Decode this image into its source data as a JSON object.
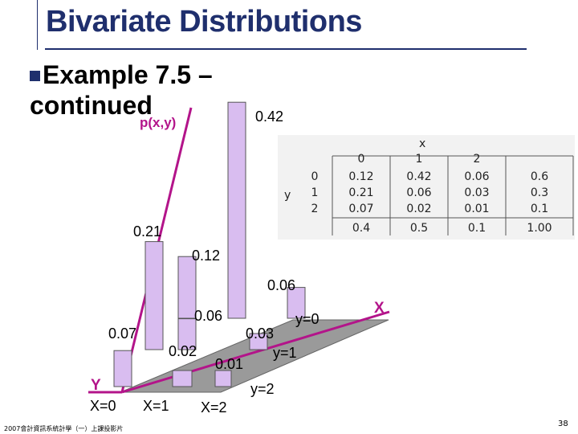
{
  "title": "Bivariate Distributions",
  "subtitle_line1": "Example 7.5 –",
  "subtitle_line2": "continued",
  "z_axis_label": "p(x,y)",
  "x_axis_letter": "X",
  "y_axis_letter": "Y",
  "bars": [
    {
      "x": 0,
      "y": 0,
      "p": "0.12"
    },
    {
      "x": 1,
      "y": 0,
      "p": "0.42"
    },
    {
      "x": 2,
      "y": 0,
      "p": "0.06"
    },
    {
      "x": 0,
      "y": 1,
      "p": "0.21"
    },
    {
      "x": 1,
      "y": 1,
      "p": "0.06"
    },
    {
      "x": 2,
      "y": 1,
      "p": "0.03"
    },
    {
      "x": 0,
      "y": 2,
      "p": "0.07"
    },
    {
      "x": 1,
      "y": 2,
      "p": "0.02"
    },
    {
      "x": 2,
      "y": 2,
      "p": "0.01"
    }
  ],
  "labels": {
    "x0": "X=0",
    "x1": "X=1",
    "x2": "X=2",
    "y0": "y=0",
    "y1": "y=1",
    "y2": "y=2"
  },
  "table": {
    "x_header": "x",
    "y_header": "y",
    "x_values": [
      "0",
      "1",
      "2"
    ],
    "y_values": [
      "0",
      "1",
      "2"
    ],
    "rows": [
      [
        "0.12",
        "0.42",
        "0.06",
        "0.6"
      ],
      [
        "0.21",
        "0.06",
        "0.03",
        "0.3"
      ],
      [
        "0.07",
        "0.02",
        "0.01",
        "0.1"
      ]
    ],
    "totals": [
      "0.4",
      "0.5",
      "0.1",
      "1.00"
    ]
  },
  "footer": "2007會計資訊系統計學（一）上課投影片",
  "page_number": "38",
  "colors": {
    "title": "#1f2f6d",
    "axis": "#b3148a",
    "bar_fill": "#d9bdf0",
    "floor": "#9a9a9a"
  }
}
